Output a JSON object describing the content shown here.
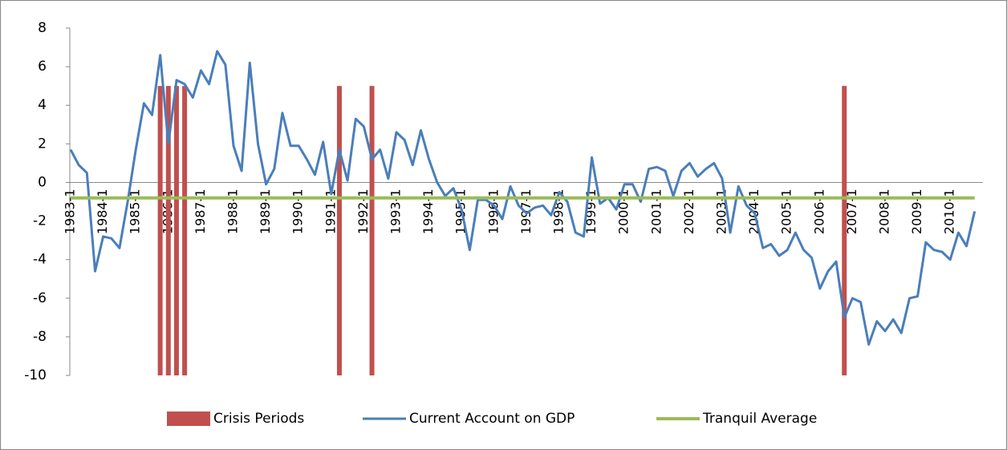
{
  "chart_data": {
    "type": "combo",
    "categories": [
      "1983-1",
      null,
      null,
      null,
      "1984-1",
      null,
      null,
      null,
      "1985-1",
      null,
      null,
      null,
      "1986-1",
      null,
      null,
      null,
      "1987-1",
      null,
      null,
      null,
      "1988-1",
      null,
      null,
      null,
      "1989-1",
      null,
      null,
      null,
      "1990-1",
      null,
      null,
      null,
      "1991-1",
      null,
      null,
      null,
      "1992-1",
      null,
      null,
      null,
      "1993-1",
      null,
      null,
      null,
      "1994-1",
      null,
      null,
      null,
      "1995-1",
      null,
      null,
      null,
      "1996-1",
      null,
      null,
      null,
      "1997-1",
      null,
      null,
      null,
      "1998-1",
      null,
      null,
      null,
      "1999-1",
      null,
      null,
      null,
      "2000-1",
      null,
      null,
      null,
      "2001-1",
      null,
      null,
      null,
      "2002-1",
      null,
      null,
      null,
      "2003-1",
      null,
      null,
      null,
      "2004-1",
      null,
      null,
      null,
      "2005-1",
      null,
      null,
      null,
      "2006-1",
      null,
      null,
      null,
      "2007-1",
      null,
      null,
      null,
      "2008-1",
      null,
      null,
      null,
      "2009-1",
      null,
      null,
      null,
      "2010-1",
      null,
      null,
      null
    ],
    "series": [
      {
        "name": "Crisis Periods",
        "type": "bar",
        "color": "#c0504d",
        "values": [
          null,
          null,
          null,
          null,
          null,
          null,
          null,
          null,
          null,
          null,
          null,
          5,
          5,
          5,
          5,
          null,
          null,
          null,
          null,
          null,
          null,
          null,
          null,
          null,
          null,
          null,
          null,
          null,
          null,
          null,
          null,
          null,
          null,
          5,
          null,
          null,
          null,
          5,
          null,
          null,
          null,
          null,
          null,
          null,
          null,
          null,
          null,
          null,
          null,
          null,
          null,
          null,
          null,
          null,
          null,
          null,
          null,
          null,
          null,
          null,
          null,
          null,
          null,
          null,
          null,
          null,
          null,
          null,
          null,
          null,
          null,
          null,
          null,
          null,
          null,
          null,
          null,
          null,
          null,
          null,
          null,
          null,
          null,
          null,
          null,
          null,
          null,
          null,
          null,
          null,
          null,
          null,
          null,
          null,
          null,
          5,
          null,
          null,
          null,
          null,
          null,
          null,
          null,
          null,
          null,
          null,
          null,
          null,
          null,
          null,
          null,
          null
        ]
      },
      {
        "name": "Current Account on GDP",
        "type": "line",
        "color": "#4a7ebb",
        "values": [
          1.7,
          0.9,
          0.5,
          -4.6,
          -2.8,
          -2.9,
          -3.4,
          -1.0,
          1.7,
          4.1,
          3.5,
          6.6,
          2.0,
          5.3,
          5.1,
          4.4,
          5.8,
          5.1,
          6.8,
          6.1,
          1.9,
          0.6,
          6.2,
          2.0,
          -0.1,
          0.7,
          3.6,
          1.9,
          1.9,
          1.2,
          0.4,
          2.1,
          -0.6,
          1.7,
          0.1,
          3.3,
          2.9,
          1.2,
          1.7,
          0.2,
          2.6,
          2.2,
          0.9,
          2.7,
          1.2,
          0.0,
          -0.7,
          -0.3,
          -1.4,
          -3.5,
          -0.9,
          -0.9,
          -1.2,
          -1.9,
          -0.2,
          -1.2,
          -1.6,
          -1.3,
          -1.2,
          -1.7,
          -0.5,
          -1.0,
          -2.6,
          -2.8,
          1.3,
          -1.1,
          -0.8,
          -1.4,
          -0.1,
          -0.1,
          -1.0,
          0.7,
          0.8,
          0.6,
          -0.7,
          0.6,
          1.0,
          0.3,
          0.7,
          1.0,
          0.2,
          -2.6,
          -0.2,
          -1.2,
          -1.6,
          -3.4,
          -3.2,
          -3.8,
          -3.5,
          -2.6,
          -3.5,
          -3.9,
          -5.5,
          -4.6,
          -4.1,
          -7.0,
          -6.0,
          -6.2,
          -8.4,
          -7.2,
          -7.7,
          -7.1,
          -7.8,
          -6.0,
          -5.9,
          -3.1,
          -3.5,
          -3.6,
          -4.0,
          -2.6,
          -3.3,
          -1.5
        ]
      },
      {
        "name": "Tranquil Average",
        "type": "line",
        "color": "#9bbb59",
        "values": [
          -0.8,
          -0.8,
          -0.8,
          -0.8,
          -0.8,
          -0.8,
          -0.8,
          -0.8,
          -0.8,
          -0.8,
          -0.8,
          -0.8,
          -0.8,
          -0.8,
          -0.8,
          -0.8,
          -0.8,
          -0.8,
          -0.8,
          -0.8,
          -0.8,
          -0.8,
          -0.8,
          -0.8,
          -0.8,
          -0.8,
          -0.8,
          -0.8,
          -0.8,
          -0.8,
          -0.8,
          -0.8,
          -0.8,
          -0.8,
          -0.8,
          -0.8,
          -0.8,
          -0.8,
          -0.8,
          -0.8,
          -0.8,
          -0.8,
          -0.8,
          -0.8,
          -0.8,
          -0.8,
          -0.8,
          -0.8,
          -0.8,
          -0.8,
          -0.8,
          -0.8,
          -0.8,
          -0.8,
          -0.8,
          -0.8,
          -0.8,
          -0.8,
          -0.8,
          -0.8,
          -0.8,
          -0.8,
          -0.8,
          -0.8,
          -0.8,
          -0.8,
          -0.8,
          -0.8,
          -0.8,
          -0.8,
          -0.8,
          -0.8,
          -0.8,
          -0.8,
          -0.8,
          -0.8,
          -0.8,
          -0.8,
          -0.8,
          -0.8,
          -0.8,
          -0.8,
          -0.8,
          -0.8,
          -0.8,
          -0.8,
          -0.8,
          -0.8,
          -0.8,
          -0.8,
          -0.8,
          -0.8,
          -0.8,
          -0.8,
          -0.8,
          -0.8,
          -0.8,
          -0.8,
          -0.8,
          -0.8,
          -0.8,
          -0.8,
          -0.8,
          -0.8,
          -0.8,
          -0.8,
          -0.8,
          -0.8,
          -0.8,
          -0.8,
          -0.8,
          -0.8
        ]
      }
    ],
    "ylim": [
      -10,
      8
    ],
    "yticks": [
      -10,
      -8,
      -6,
      -4,
      -2,
      0,
      2,
      4,
      6,
      8
    ],
    "legend": "bottom"
  }
}
